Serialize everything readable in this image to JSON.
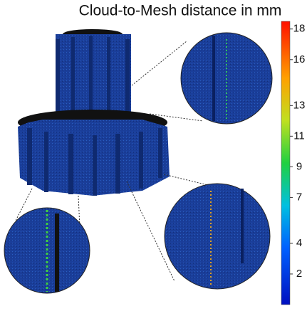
{
  "title": "Cloud-to-Mesh distance in mm",
  "colorbar": {
    "lim": [
      0,
      18.5
    ],
    "ticks": [
      2,
      4,
      7,
      9,
      11,
      13,
      16,
      18
    ]
  }
}
